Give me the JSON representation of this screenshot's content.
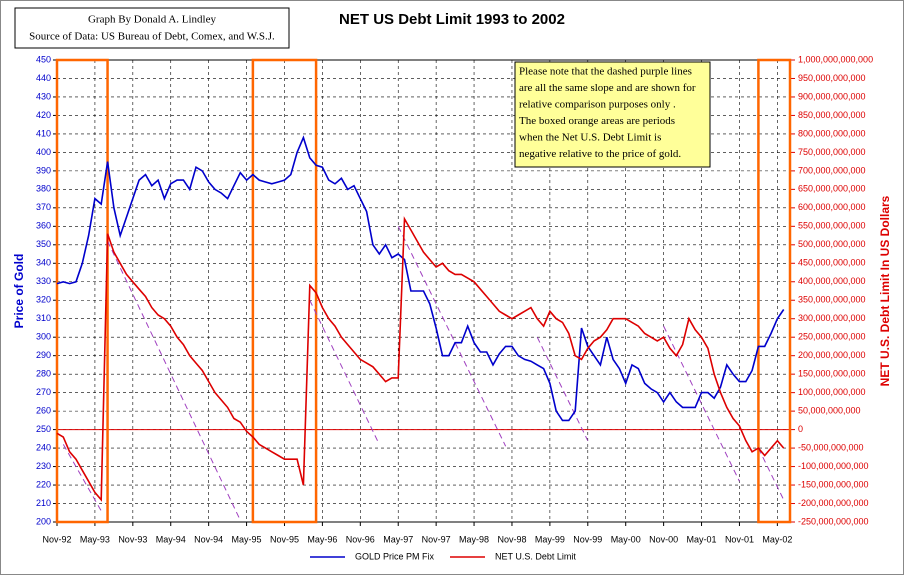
{
  "chart_data": {
    "type": "line",
    "title": "NET US Debt Limit 1993 to 2002",
    "credit": [
      "Graph By Donald A. Lindley",
      "Source of Data: US Bureau of Debt, Comex, and W.S.J."
    ],
    "note": [
      "Please note that the dashed purple lines",
      "are all the same slope and are shown for",
      "relative comparison purposes only .",
      "The boxed orange areas are periods",
      "when the Net U.S. Debt Limit is",
      "negative relative to the price of gold."
    ],
    "ylabel": "Price of Gold",
    "y2label": "NET U.S. Debt Limit In US Dollars",
    "grid": true,
    "legend": "bottom",
    "x": [
      "1992-11",
      "1992-12",
      "1993-01",
      "1993-02",
      "1993-03",
      "1993-04",
      "1993-05",
      "1993-06",
      "1993-07",
      "1993-08",
      "1993-09",
      "1993-10",
      "1993-11",
      "1993-12",
      "1994-01",
      "1994-02",
      "1994-03",
      "1994-04",
      "1994-05",
      "1994-06",
      "1994-07",
      "1994-08",
      "1994-09",
      "1994-10",
      "1994-11",
      "1994-12",
      "1995-01",
      "1995-02",
      "1995-03",
      "1995-04",
      "1995-05",
      "1995-06",
      "1995-07",
      "1995-08",
      "1995-09",
      "1995-10",
      "1995-11",
      "1995-12",
      "1996-01",
      "1996-02",
      "1996-03",
      "1996-04",
      "1996-05",
      "1996-06",
      "1996-07",
      "1996-08",
      "1996-09",
      "1996-10",
      "1996-11",
      "1996-12",
      "1997-01",
      "1997-02",
      "1997-03",
      "1997-04",
      "1997-05",
      "1997-06",
      "1997-07",
      "1997-08",
      "1997-09",
      "1997-10",
      "1997-11",
      "1997-12",
      "1998-01",
      "1998-02",
      "1998-03",
      "1998-04",
      "1998-05",
      "1998-06",
      "1998-07",
      "1998-08",
      "1998-09",
      "1998-10",
      "1998-11",
      "1998-12",
      "1999-01",
      "1999-02",
      "1999-03",
      "1999-04",
      "1999-05",
      "1999-06",
      "1999-07",
      "1999-08",
      "1999-09",
      "1999-10",
      "1999-11",
      "1999-12",
      "2000-01",
      "2000-02",
      "2000-03",
      "2000-04",
      "2000-05",
      "2000-06",
      "2000-07",
      "2000-08",
      "2000-09",
      "2000-10",
      "2000-11",
      "2000-12",
      "2001-01",
      "2001-02",
      "2001-03",
      "2001-04",
      "2001-05",
      "2001-06",
      "2001-07",
      "2001-08",
      "2001-09",
      "2001-10",
      "2001-11",
      "2001-12",
      "2002-01",
      "2002-02",
      "2002-03",
      "2002-04",
      "2002-05",
      "2002-06"
    ],
    "series": [
      {
        "name": "GOLD Price PM Fix",
        "color": "#0000cc",
        "axis": "y",
        "values": [
          329,
          330,
          329,
          330,
          340,
          355,
          375,
          372,
          395,
          370,
          355,
          365,
          375,
          385,
          388,
          382,
          385,
          375,
          383,
          385,
          385,
          380,
          392,
          390,
          384,
          380,
          378,
          375,
          382,
          389,
          385,
          388,
          385,
          384,
          383,
          384,
          385,
          388,
          400,
          408,
          397,
          393,
          392,
          385,
          383,
          386,
          380,
          382,
          375,
          368,
          350,
          345,
          350,
          343,
          345,
          342,
          325,
          325,
          325,
          318,
          305,
          290,
          290,
          297,
          297,
          306,
          297,
          292,
          292,
          285,
          291,
          295,
          295,
          290,
          288,
          287,
          285,
          283,
          275,
          260,
          255,
          255,
          260,
          305,
          295,
          290,
          285,
          300,
          288,
          283,
          275,
          285,
          283,
          275,
          272,
          270,
          265,
          270,
          265,
          262,
          262,
          262,
          270,
          270,
          267,
          273,
          285,
          280,
          276,
          276,
          282,
          295,
          295,
          302,
          310,
          315
        ]
      },
      {
        "name": "NET U.S. Debt Limit",
        "color": "#dd0000",
        "axis": "y2",
        "values": [
          -10000000000.0,
          -20000000000.0,
          -60000000000.0,
          -80000000000.0,
          -110000000000.0,
          -140000000000.0,
          -170000000000.0,
          -190000000000.0,
          530000000000.0,
          480000000000.0,
          450000000000.0,
          420000000000.0,
          400000000000.0,
          380000000000.0,
          360000000000.0,
          330000000000.0,
          310000000000.0,
          300000000000.0,
          280000000000.0,
          250000000000.0,
          230000000000.0,
          200000000000.0,
          180000000000.0,
          160000000000.0,
          130000000000.0,
          100000000000.0,
          80000000000.0,
          60000000000.0,
          30000000000.0,
          20000000000.0,
          -5000000000.0,
          -20000000000.0,
          -40000000000.0,
          -50000000000.0,
          -60000000000.0,
          -70000000000.0,
          -80000000000.0,
          -80000000000.0,
          -80000000000.0,
          -150000000000.0,
          390000000000.0,
          370000000000.0,
          330000000000.0,
          300000000000.0,
          280000000000.0,
          250000000000.0,
          230000000000.0,
          210000000000.0,
          190000000000.0,
          180000000000.0,
          170000000000.0,
          150000000000.0,
          130000000000.0,
          140000000000.0,
          140000000000.0,
          570000000000.0,
          540000000000.0,
          510000000000.0,
          480000000000.0,
          460000000000.0,
          440000000000.0,
          450000000000.0,
          430000000000.0,
          420000000000.0,
          420000000000.0,
          410000000000.0,
          400000000000.0,
          380000000000.0,
          360000000000.0,
          340000000000.0,
          320000000000.0,
          310000000000.0,
          300000000000.0,
          310000000000.0,
          320000000000.0,
          330000000000.0,
          300000000000.0,
          280000000000.0,
          320000000000.0,
          300000000000.0,
          290000000000.0,
          260000000000.0,
          200000000000.0,
          190000000000.0,
          220000000000.0,
          240000000000.0,
          250000000000.0,
          270000000000.0,
          300000000000.0,
          300000000000.0,
          300000000000.0,
          290000000000.0,
          280000000000.0,
          260000000000.0,
          250000000000.0,
          240000000000.0,
          250000000000.0,
          220000000000.0,
          200000000000.0,
          230000000000.0,
          300000000000.0,
          270000000000.0,
          250000000000.0,
          220000000000.0,
          150000000000.0,
          100000000000.0,
          60000000000.0,
          30000000000.0,
          10000000000.0,
          -30000000000.0,
          -60000000000.0,
          -50000000000.0,
          -70000000000.0,
          -50000000000.0,
          -30000000000.0,
          -50000000000.0
        ]
      }
    ],
    "trend_color": "#a040c0",
    "trend_lines": [
      {
        "x": [
          "1992-12",
          "1993-06"
        ],
        "values": [
          -40000000000.0,
          -220000000000.0
        ]
      },
      {
        "x": [
          "1993-07",
          "1995-04"
        ],
        "values": [
          510000000000.0,
          -245000000000.0
        ]
      },
      {
        "x": [
          "1996-03",
          "1997-02"
        ],
        "values": [
          350000000000.0,
          -40000000000.0
        ]
      },
      {
        "x": [
          "1997-05",
          "1998-10"
        ],
        "values": [
          550000000000.0,
          -45000000000.0
        ]
      },
      {
        "x": [
          "1999-03",
          "1999-11"
        ],
        "values": [
          250000000000.0,
          -30000000000.0
        ]
      },
      {
        "x": [
          "2000-11",
          "2001-11"
        ],
        "values": [
          280000000000.0,
          -140000000000.0
        ]
      },
      {
        "x": [
          "2002-02",
          "2002-06"
        ],
        "values": [
          -50000000000.0,
          -190000000000.0
        ]
      }
    ],
    "period_color": "#ff6600",
    "highlight_periods": [
      [
        "1992-11",
        "1993-07"
      ],
      [
        "1995-06",
        "1996-04"
      ],
      [
        "2002-02",
        "2002-07"
      ]
    ],
    "y2_reference": 0,
    "xlim": [
      "1992-11",
      "2002-07"
    ],
    "xticks": [
      {
        "value": "1992-11",
        "label": "Nov-92"
      },
      {
        "value": "1993-05",
        "label": "May-93"
      },
      {
        "value": "1993-11",
        "label": "Nov-93"
      },
      {
        "value": "1994-05",
        "label": "May-94"
      },
      {
        "value": "1994-11",
        "label": "Nov-94"
      },
      {
        "value": "1995-05",
        "label": "May-95"
      },
      {
        "value": "1995-11",
        "label": "Nov-95"
      },
      {
        "value": "1996-05",
        "label": "May-96"
      },
      {
        "value": "1996-11",
        "label": "Nov-96"
      },
      {
        "value": "1997-05",
        "label": "May-97"
      },
      {
        "value": "1997-11",
        "label": "Nov-97"
      },
      {
        "value": "1998-05",
        "label": "May-98"
      },
      {
        "value": "1998-11",
        "label": "Nov-98"
      },
      {
        "value": "1999-05",
        "label": "May-99"
      },
      {
        "value": "1999-11",
        "label": "Nov-99"
      },
      {
        "value": "2000-05",
        "label": "May-00"
      },
      {
        "value": "2000-11",
        "label": "Nov-00"
      },
      {
        "value": "2001-05",
        "label": "May-01"
      },
      {
        "value": "2001-11",
        "label": "Nov-01"
      },
      {
        "value": "2002-05",
        "label": "May-02"
      }
    ],
    "ylim": [
      200,
      450
    ],
    "yticks": [
      200,
      210,
      220,
      230,
      240,
      250,
      260,
      270,
      280,
      290,
      300,
      310,
      320,
      330,
      340,
      350,
      360,
      370,
      380,
      390,
      400,
      410,
      420,
      430,
      440,
      450
    ],
    "y2lim": [
      -250000000000.0,
      1000000000000.0
    ],
    "y2ticks": [
      {
        "value": -250000000000.0,
        "label": "-250,000,000,000"
      },
      {
        "value": -200000000000.0,
        "label": "-200,000,000,000"
      },
      {
        "value": -150000000000.0,
        "label": "-150,000,000,000"
      },
      {
        "value": -100000000000.0,
        "label": "-100,000,000,000"
      },
      {
        "value": -50000000000.0,
        "label": "-50,000,000,000"
      },
      0,
      {
        "value": 50000000000.0,
        "label": "50,000,000,000"
      },
      {
        "value": 100000000000.0,
        "label": "100,000,000,000"
      },
      {
        "value": 150000000000.0,
        "label": "150,000,000,000"
      },
      {
        "value": 200000000000.0,
        "label": "200,000,000,000"
      },
      {
        "value": 250000000000.0,
        "label": "250,000,000,000"
      },
      {
        "value": 300000000000.0,
        "label": "300,000,000,000"
      },
      {
        "value": 350000000000.0,
        "label": "350,000,000,000"
      },
      {
        "value": 400000000000.0,
        "label": "400,000,000,000"
      },
      {
        "value": 450000000000.0,
        "label": "450,000,000,000"
      },
      {
        "value": 500000000000.0,
        "label": "500,000,000,000"
      },
      {
        "value": 550000000000.0,
        "label": "550,000,000,000"
      },
      {
        "value": 600000000000.0,
        "label": "600,000,000,000"
      },
      {
        "value": 650000000000.0,
        "label": "650,000,000,000"
      },
      {
        "value": 700000000000.0,
        "label": "700,000,000,000"
      },
      {
        "value": 750000000000.0,
        "label": "750,000,000,000"
      },
      {
        "value": 800000000000.0,
        "label": "800,000,000,000"
      },
      {
        "value": 850000000000.0,
        "label": "850,000,000,000"
      },
      {
        "value": 900000000000.0,
        "label": "900,000,000,000"
      },
      {
        "value": 950000000000.0,
        "label": "950,000,000,000"
      },
      {
        "value": 1000000000000.0,
        "label": "1,000,000,000,000"
      }
    ]
  }
}
